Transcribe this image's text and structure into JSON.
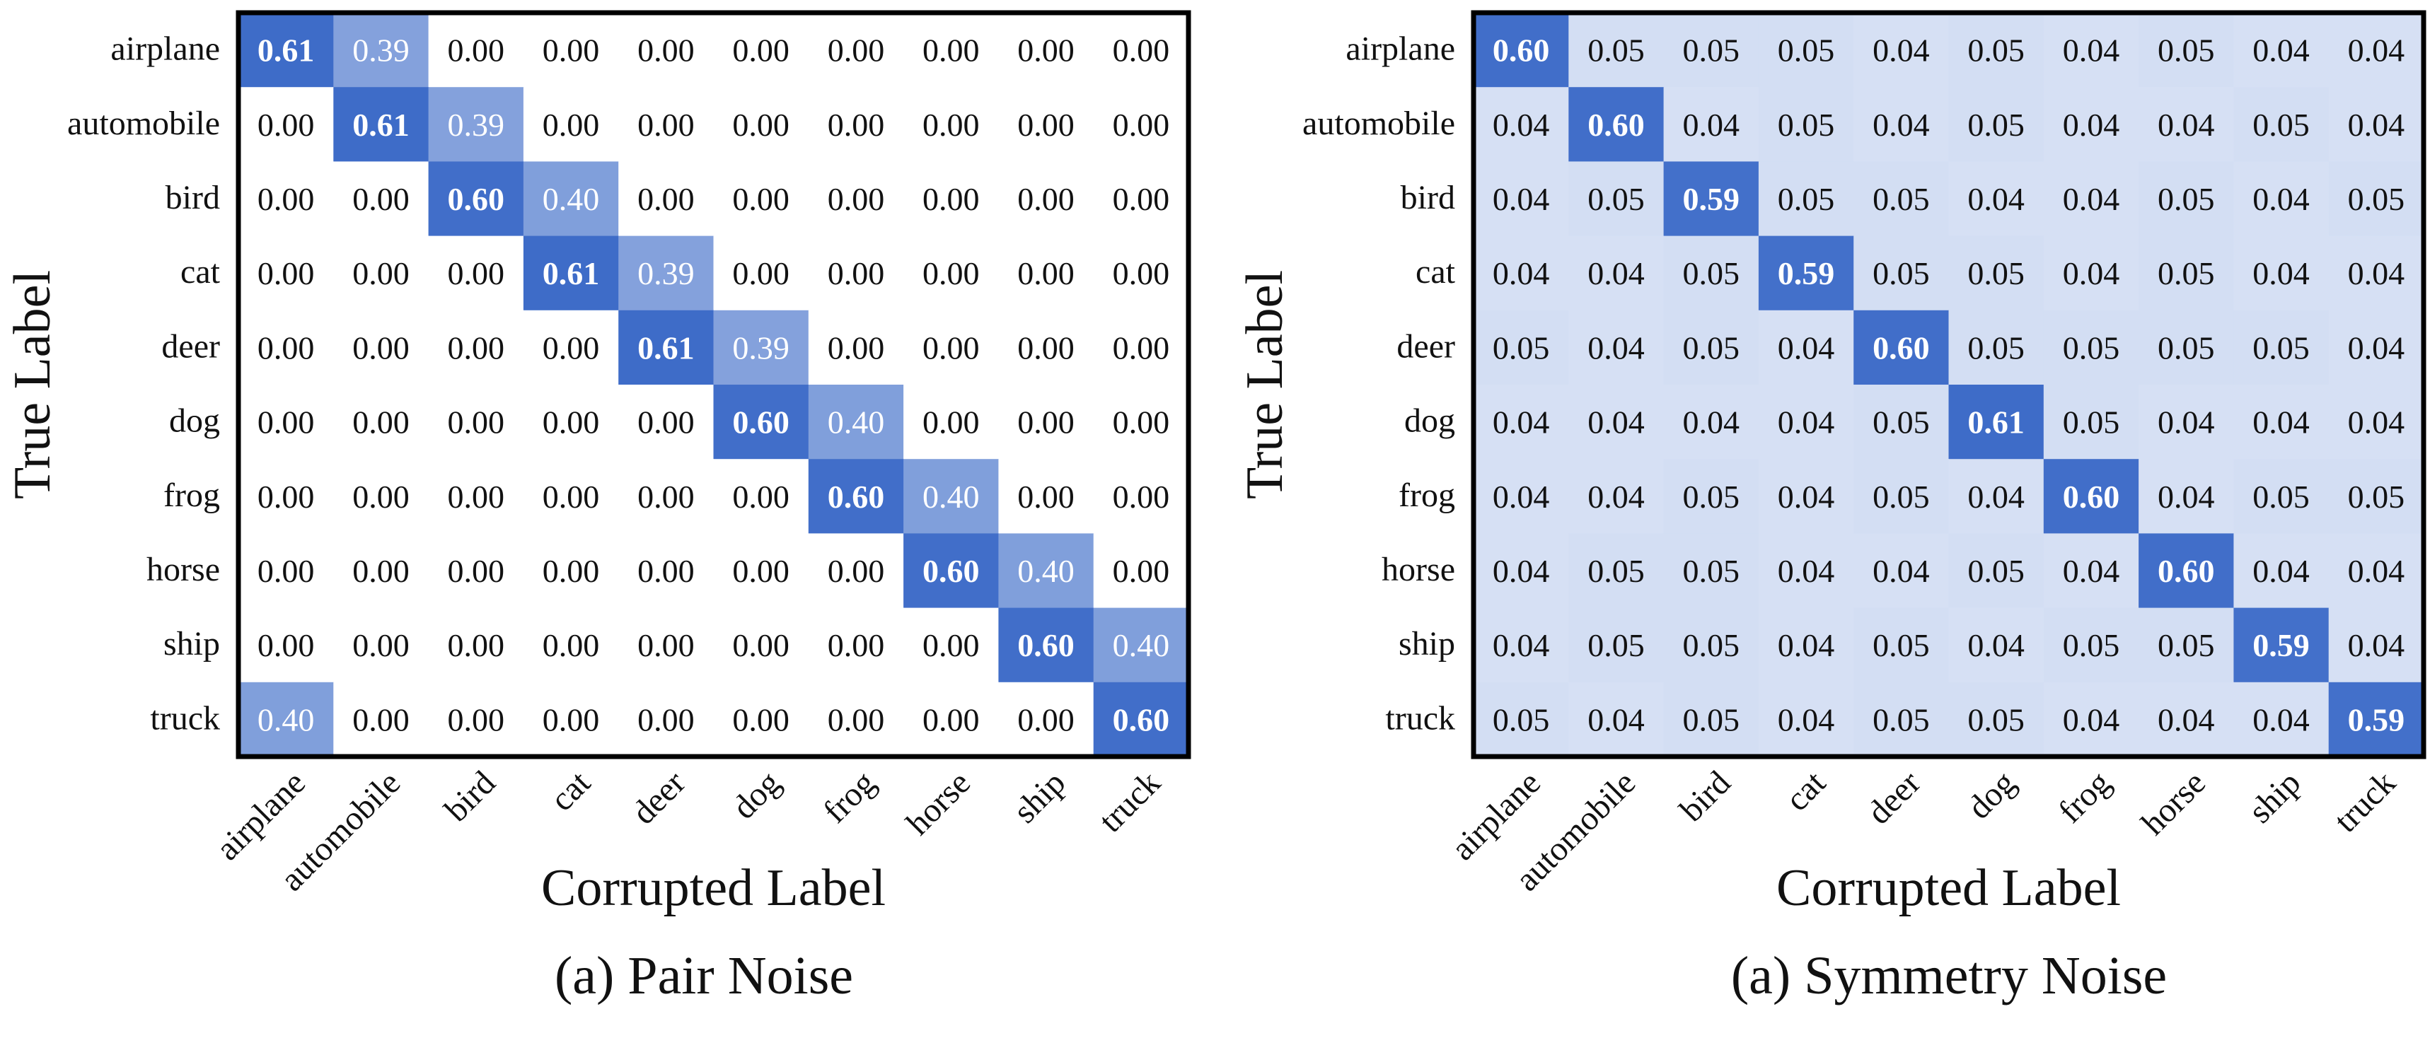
{
  "chart_data": [
    {
      "type": "heatmap",
      "caption": "(a) Pair Noise",
      "xlabel": "Corrupted Label",
      "ylabel": "True Label",
      "categories": [
        "airplane",
        "automobile",
        "bird",
        "cat",
        "deer",
        "dog",
        "frog",
        "horse",
        "ship",
        "truck"
      ],
      "values": [
        [
          0.61,
          0.39,
          0.0,
          0.0,
          0.0,
          0.0,
          0.0,
          0.0,
          0.0,
          0.0
        ],
        [
          0.0,
          0.61,
          0.39,
          0.0,
          0.0,
          0.0,
          0.0,
          0.0,
          0.0,
          0.0
        ],
        [
          0.0,
          0.0,
          0.6,
          0.4,
          0.0,
          0.0,
          0.0,
          0.0,
          0.0,
          0.0
        ],
        [
          0.0,
          0.0,
          0.0,
          0.61,
          0.39,
          0.0,
          0.0,
          0.0,
          0.0,
          0.0
        ],
        [
          0.0,
          0.0,
          0.0,
          0.0,
          0.61,
          0.39,
          0.0,
          0.0,
          0.0,
          0.0
        ],
        [
          0.0,
          0.0,
          0.0,
          0.0,
          0.0,
          0.6,
          0.4,
          0.0,
          0.0,
          0.0
        ],
        [
          0.0,
          0.0,
          0.0,
          0.0,
          0.0,
          0.0,
          0.6,
          0.4,
          0.0,
          0.0
        ],
        [
          0.0,
          0.0,
          0.0,
          0.0,
          0.0,
          0.0,
          0.0,
          0.6,
          0.4,
          0.0
        ],
        [
          0.0,
          0.0,
          0.0,
          0.0,
          0.0,
          0.0,
          0.0,
          0.0,
          0.6,
          0.4
        ],
        [
          0.4,
          0.0,
          0.0,
          0.0,
          0.0,
          0.0,
          0.0,
          0.0,
          0.0,
          0.6
        ]
      ],
      "colors": {
        "low": "#ffffff",
        "high": "#3e6cc8"
      }
    },
    {
      "type": "heatmap",
      "caption": "(a) Symmetry Noise",
      "xlabel": "Corrupted Label",
      "ylabel": "True Label",
      "categories": [
        "airplane",
        "automobile",
        "bird",
        "cat",
        "deer",
        "dog",
        "frog",
        "horse",
        "ship",
        "truck"
      ],
      "values": [
        [
          0.6,
          0.05,
          0.05,
          0.05,
          0.04,
          0.05,
          0.04,
          0.05,
          0.04,
          0.04
        ],
        [
          0.04,
          0.6,
          0.04,
          0.05,
          0.04,
          0.05,
          0.04,
          0.04,
          0.05,
          0.04
        ],
        [
          0.04,
          0.05,
          0.59,
          0.05,
          0.05,
          0.04,
          0.04,
          0.05,
          0.04,
          0.05
        ],
        [
          0.04,
          0.04,
          0.05,
          0.59,
          0.05,
          0.05,
          0.04,
          0.05,
          0.04,
          0.04
        ],
        [
          0.05,
          0.04,
          0.05,
          0.04,
          0.6,
          0.05,
          0.05,
          0.05,
          0.05,
          0.04
        ],
        [
          0.04,
          0.04,
          0.04,
          0.04,
          0.05,
          0.61,
          0.05,
          0.04,
          0.04,
          0.04
        ],
        [
          0.04,
          0.04,
          0.05,
          0.04,
          0.05,
          0.04,
          0.6,
          0.04,
          0.05,
          0.05
        ],
        [
          0.04,
          0.05,
          0.05,
          0.04,
          0.04,
          0.05,
          0.04,
          0.6,
          0.04,
          0.04
        ],
        [
          0.04,
          0.05,
          0.05,
          0.04,
          0.05,
          0.04,
          0.05,
          0.05,
          0.59,
          0.04
        ],
        [
          0.05,
          0.04,
          0.05,
          0.04,
          0.05,
          0.05,
          0.04,
          0.04,
          0.04,
          0.59
        ]
      ],
      "colors": {
        "low": "#d6e0f4",
        "high": "#3e6cc8"
      }
    }
  ]
}
